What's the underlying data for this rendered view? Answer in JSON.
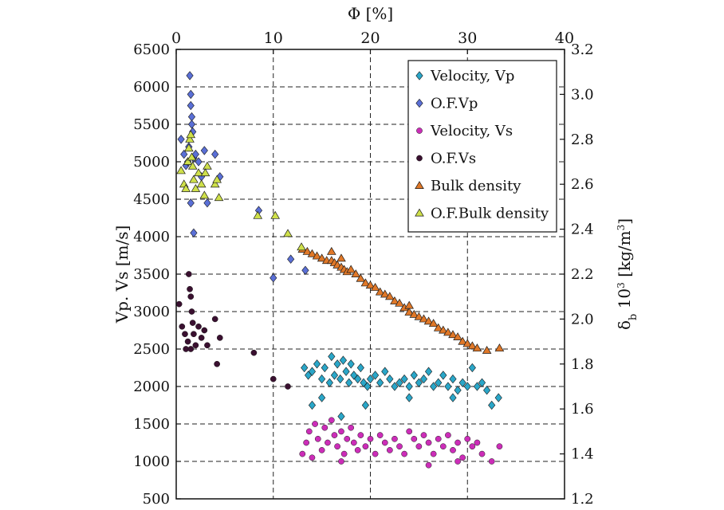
{
  "chart_data": {
    "type": "scatter",
    "x_top": {
      "label": "Φ [%]",
      "range": [
        0,
        40
      ],
      "ticks": [
        0,
        10,
        20,
        30,
        40
      ]
    },
    "y_left": {
      "label": "Vp. Vs [m/s]",
      "range": [
        500,
        6500
      ],
      "ticks": [
        500,
        1000,
        1500,
        2000,
        2500,
        3000,
        3500,
        4000,
        4500,
        5000,
        5500,
        6000,
        6500
      ]
    },
    "y_right": {
      "label": "δb 10³ [kg/m³]",
      "label_main": "δ",
      "label_sub": "b",
      "label_mid": " 10",
      "label_sup": "3",
      "label_unit": " [kg/m",
      "label_unit_sup": "3",
      "label_close": "]",
      "range": [
        1.2,
        3.2
      ],
      "ticks": [
        "1.2",
        "1.4",
        "1.6",
        "1.8",
        "2.0",
        "2.2",
        "2.4",
        "2.6",
        "2.8",
        "3.0",
        "3.2"
      ]
    },
    "grid": true,
    "legend_position": "top-right",
    "series": [
      {
        "name": "Velocity, Vp",
        "axis": "left",
        "marker": "diamond",
        "color": "#2aa6c8",
        "points": [
          [
            13.2,
            2250
          ],
          [
            13.6,
            2150
          ],
          [
            14,
            2200
          ],
          [
            14.5,
            2300
          ],
          [
            15,
            2100
          ],
          [
            15.3,
            2250
          ],
          [
            15.8,
            2050
          ],
          [
            16,
            2400
          ],
          [
            16.3,
            2150
          ],
          [
            16.6,
            2300
          ],
          [
            16.9,
            2100
          ],
          [
            17.2,
            2350
          ],
          [
            17.5,
            2200
          ],
          [
            17.8,
            2050
          ],
          [
            18,
            2300
          ],
          [
            18.3,
            2150
          ],
          [
            18.7,
            2100
          ],
          [
            19,
            2250
          ],
          [
            19.3,
            2050
          ],
          [
            19.7,
            2000
          ],
          [
            20,
            2100
          ],
          [
            20.5,
            2150
          ],
          [
            21,
            2050
          ],
          [
            21.5,
            2200
          ],
          [
            22,
            2100
          ],
          [
            22.5,
            2000
          ],
          [
            23,
            2050
          ],
          [
            23.5,
            2100
          ],
          [
            24,
            2000
          ],
          [
            24.5,
            2150
          ],
          [
            25,
            2050
          ],
          [
            25.5,
            2100
          ],
          [
            26,
            2200
          ],
          [
            26.5,
            2000
          ],
          [
            27,
            2050
          ],
          [
            27.5,
            2150
          ],
          [
            28,
            2000
          ],
          [
            28.5,
            2100
          ],
          [
            29,
            1950
          ],
          [
            29.5,
            2050
          ],
          [
            30,
            2000
          ],
          [
            30.5,
            2250
          ],
          [
            31,
            2000
          ],
          [
            31.5,
            2050
          ],
          [
            32,
            1950
          ],
          [
            32.5,
            1750
          ],
          [
            33.2,
            1850
          ],
          [
            14,
            1750
          ],
          [
            15,
            1850
          ],
          [
            17,
            1600
          ],
          [
            19.5,
            1750
          ],
          [
            24,
            1850
          ],
          [
            28.5,
            1850
          ]
        ]
      },
      {
        "name": "O.F.Vp",
        "axis": "left",
        "marker": "diamond",
        "color": "#5a6fd6",
        "points": [
          [
            0.5,
            5300
          ],
          [
            0.8,
            5100
          ],
          [
            1,
            4950
          ],
          [
            1.2,
            5000
          ],
          [
            1.3,
            5200
          ],
          [
            1.4,
            6150
          ],
          [
            1.5,
            5900
          ],
          [
            1.5,
            5750
          ],
          [
            1.6,
            5600
          ],
          [
            1.6,
            5500
          ],
          [
            1.7,
            5400
          ],
          [
            1.8,
            5050
          ],
          [
            1.5,
            4450
          ],
          [
            2,
            5100
          ],
          [
            2.3,
            5000
          ],
          [
            2.6,
            4800
          ],
          [
            2.9,
            5150
          ],
          [
            3.2,
            4450
          ],
          [
            4,
            5100
          ],
          [
            4.5,
            4800
          ],
          [
            8.5,
            4350
          ],
          [
            10,
            3450
          ],
          [
            11.8,
            3700
          ],
          [
            13.3,
            3550
          ],
          [
            1.8,
            4050
          ]
        ]
      },
      {
        "name": "Velocity, Vs",
        "axis": "left",
        "marker": "circle",
        "color": "#cc2db8",
        "points": [
          [
            13,
            1100
          ],
          [
            13.4,
            1250
          ],
          [
            13.7,
            1400
          ],
          [
            14,
            1050
          ],
          [
            14.3,
            1500
          ],
          [
            14.6,
            1300
          ],
          [
            15,
            1150
          ],
          [
            15.3,
            1450
          ],
          [
            15.6,
            1250
          ],
          [
            16,
            1550
          ],
          [
            16.3,
            1350
          ],
          [
            16.6,
            1200
          ],
          [
            17,
            1400
          ],
          [
            17.3,
            1100
          ],
          [
            17.6,
            1300
          ],
          [
            18,
            1450
          ],
          [
            18.3,
            1250
          ],
          [
            18.7,
            1150
          ],
          [
            19,
            1350
          ],
          [
            19.5,
            1200
          ],
          [
            20,
            1300
          ],
          [
            20.5,
            1100
          ],
          [
            21,
            1350
          ],
          [
            21.5,
            1250
          ],
          [
            22,
            1150
          ],
          [
            22.5,
            1300
          ],
          [
            23,
            1200
          ],
          [
            23.5,
            1100
          ],
          [
            24,
            1400
          ],
          [
            24.5,
            1300
          ],
          [
            25,
            1200
          ],
          [
            25.5,
            1350
          ],
          [
            26,
            1250
          ],
          [
            26.5,
            1100
          ],
          [
            27,
            1300
          ],
          [
            27.5,
            1200
          ],
          [
            28,
            1350
          ],
          [
            28.5,
            1150
          ],
          [
            29,
            1250
          ],
          [
            29.5,
            1050
          ],
          [
            30,
            1300
          ],
          [
            30.5,
            1200
          ],
          [
            31,
            1250
          ],
          [
            31.5,
            1100
          ],
          [
            32.5,
            1000
          ],
          [
            33.3,
            1200
          ],
          [
            17,
            1000
          ],
          [
            26,
            950
          ],
          [
            29,
            1000
          ]
        ]
      },
      {
        "name": "O.F.Vs",
        "axis": "left",
        "marker": "circle",
        "color": "#3a1030",
        "points": [
          [
            0.3,
            3100
          ],
          [
            0.6,
            2800
          ],
          [
            0.9,
            2700
          ],
          [
            1,
            2500
          ],
          [
            1.2,
            2600
          ],
          [
            1.3,
            3500
          ],
          [
            1.4,
            3300
          ],
          [
            1.5,
            3200
          ],
          [
            1.6,
            3000
          ],
          [
            1.7,
            2850
          ],
          [
            1.8,
            2700
          ],
          [
            2,
            2550
          ],
          [
            2.3,
            2800
          ],
          [
            2.6,
            2650
          ],
          [
            2.9,
            2750
          ],
          [
            3.2,
            2550
          ],
          [
            4,
            2900
          ],
          [
            4.5,
            2650
          ],
          [
            4.2,
            2300
          ],
          [
            8,
            2450
          ],
          [
            10,
            2100
          ],
          [
            11.5,
            2000
          ],
          [
            1.5,
            2500
          ]
        ]
      },
      {
        "name": "Bulk density",
        "axis": "right",
        "marker": "triangle",
        "color": "#e07828",
        "points": [
          [
            13,
            2.31
          ],
          [
            13.5,
            2.3
          ],
          [
            14,
            2.29
          ],
          [
            14.5,
            2.28
          ],
          [
            15,
            2.27
          ],
          [
            15.5,
            2.26
          ],
          [
            16,
            2.26
          ],
          [
            16.3,
            2.25
          ],
          [
            16.6,
            2.24
          ],
          [
            17,
            2.23
          ],
          [
            17.3,
            2.22
          ],
          [
            17.6,
            2.21
          ],
          [
            18,
            2.22
          ],
          [
            18.5,
            2.2
          ],
          [
            19,
            2.18
          ],
          [
            19.5,
            2.16
          ],
          [
            20,
            2.15
          ],
          [
            20.5,
            2.14
          ],
          [
            21,
            2.12
          ],
          [
            21.5,
            2.11
          ],
          [
            22,
            2.1
          ],
          [
            22.5,
            2.08
          ],
          [
            23,
            2.07
          ],
          [
            23.5,
            2.05
          ],
          [
            24,
            2.03
          ],
          [
            24.5,
            2.02
          ],
          [
            25,
            2.01
          ],
          [
            25.5,
            2.0
          ],
          [
            26,
            1.99
          ],
          [
            26.5,
            1.98
          ],
          [
            27,
            1.96
          ],
          [
            27.5,
            1.95
          ],
          [
            28,
            1.94
          ],
          [
            28.5,
            1.93
          ],
          [
            29,
            1.92
          ],
          [
            29.5,
            1.9
          ],
          [
            30,
            1.89
          ],
          [
            30.5,
            1.88
          ],
          [
            31,
            1.87
          ],
          [
            32,
            1.86
          ],
          [
            33.3,
            1.87
          ],
          [
            16,
            2.3
          ],
          [
            17,
            2.27
          ],
          [
            24,
            2.06
          ]
        ]
      },
      {
        "name": "O.F.Bulk density",
        "axis": "right",
        "marker": "triangle",
        "color": "#cfe04a",
        "points": [
          [
            0.5,
            2.66
          ],
          [
            0.8,
            2.6
          ],
          [
            1,
            2.58
          ],
          [
            1.2,
            2.7
          ],
          [
            1.3,
            2.76
          ],
          [
            1.4,
            2.8
          ],
          [
            1.5,
            2.82
          ],
          [
            1.6,
            2.72
          ],
          [
            1.7,
            2.68
          ],
          [
            1.8,
            2.62
          ],
          [
            2,
            2.58
          ],
          [
            2.3,
            2.65
          ],
          [
            2.6,
            2.6
          ],
          [
            2.9,
            2.55
          ],
          [
            3.2,
            2.68
          ],
          [
            4,
            2.6
          ],
          [
            4.4,
            2.54
          ],
          [
            8.4,
            2.46
          ],
          [
            10.2,
            2.46
          ],
          [
            11.5,
            2.38
          ],
          [
            12.9,
            2.32
          ],
          [
            4.2,
            2.62
          ],
          [
            3,
            2.65
          ]
        ]
      }
    ]
  }
}
